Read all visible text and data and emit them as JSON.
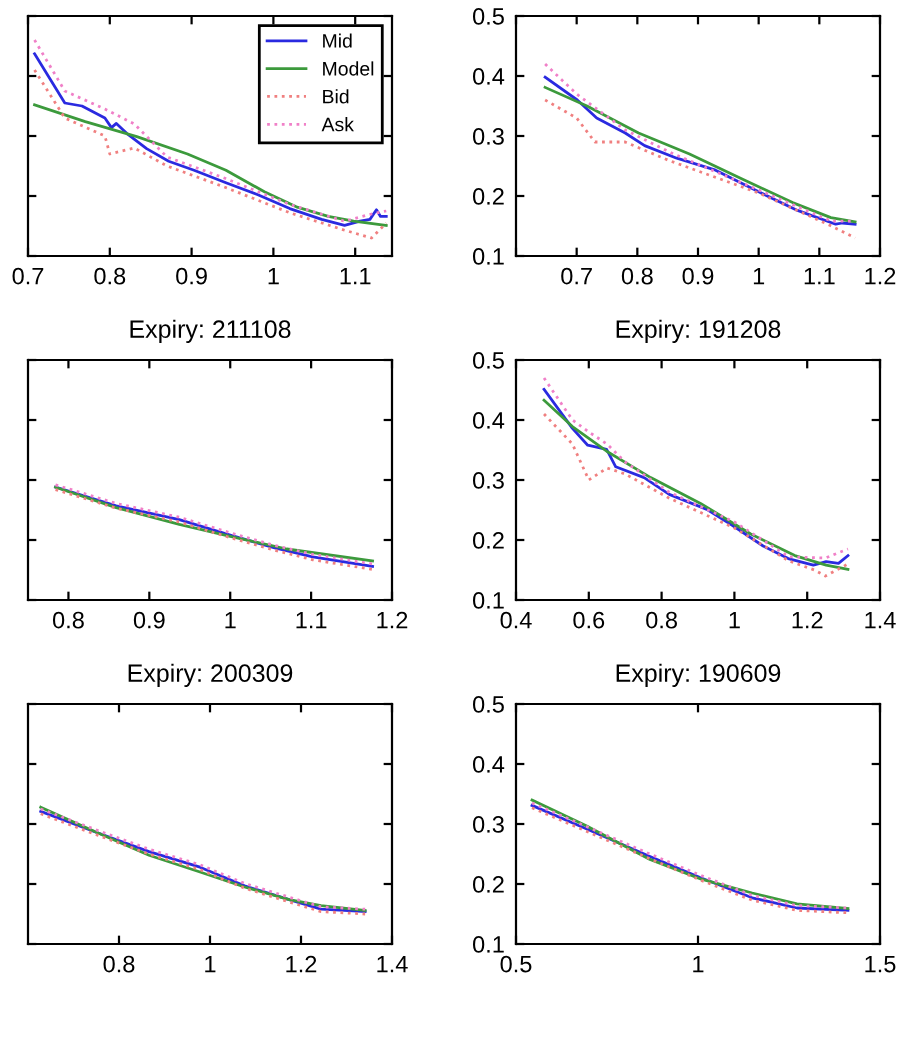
{
  "chart_data": [
    {
      "type": "line",
      "xlim": [
        0.7,
        1.145
      ],
      "xticks": [
        0.7,
        0.8,
        0.9,
        1,
        1.1
      ],
      "ylim": [
        0.1,
        0.5
      ],
      "yticks": [
        {
          "value": 0.1,
          "label": null
        },
        {
          "value": 0.2,
          "label": null
        },
        {
          "value": 0.3,
          "label": null
        },
        {
          "value": 0.4,
          "label": null
        },
        {
          "value": 0.5,
          "label": null
        }
      ],
      "tick_labels": "x",
      "legend": "top right",
      "series": [
        {
          "name": "Mid",
          "color": "#2a2ae0",
          "line_style": "solid",
          "x": [
            0.708,
            0.745,
            0.766,
            0.794,
            0.802,
            0.808,
            0.821,
            0.845,
            0.872,
            0.903,
            0.942,
            0.981,
            1.02,
            1.059,
            1.087,
            1.106,
            1.118,
            1.126,
            1.131,
            1.138
          ],
          "values": [
            0.437,
            0.355,
            0.35,
            0.33,
            0.314,
            0.321,
            0.304,
            0.279,
            0.258,
            0.243,
            0.222,
            0.202,
            0.179,
            0.161,
            0.151,
            0.158,
            0.161,
            0.177,
            0.166,
            0.166
          ]
        },
        {
          "name": "Model",
          "color": "#3c9a3c",
          "line_style": "solid",
          "x": [
            0.708,
            0.77,
            0.833,
            0.895,
            0.942,
            0.989,
            1.028,
            1.067,
            1.098,
            1.138
          ],
          "values": [
            0.352,
            0.324,
            0.299,
            0.27,
            0.243,
            0.207,
            0.182,
            0.166,
            0.158,
            0.151
          ]
        },
        {
          "name": "Bid",
          "color": "#f08080",
          "line_style": "dotted",
          "x": [
            0.708,
            0.745,
            0.794,
            0.8,
            0.83,
            0.87,
            0.94,
            1.02,
            1.087,
            1.12,
            1.138
          ],
          "values": [
            0.41,
            0.33,
            0.3,
            0.27,
            0.28,
            0.25,
            0.215,
            0.172,
            0.143,
            0.13,
            0.155
          ]
        },
        {
          "name": "Ask",
          "color": "#f080c8",
          "line_style": "dotted",
          "x": [
            0.708,
            0.745,
            0.794,
            0.83,
            0.87,
            0.94,
            1.02,
            1.087,
            1.12,
            1.138
          ],
          "values": [
            0.46,
            0.375,
            0.345,
            0.32,
            0.265,
            0.23,
            0.186,
            0.158,
            0.17,
            0.175
          ]
        }
      ]
    },
    {
      "type": "line",
      "xlim": [
        0.6,
        1.2
      ],
      "xticks": [
        {
          "value": 0.6,
          "label": null
        },
        0.7,
        0.8,
        0.9,
        1,
        1.1,
        1.2
      ],
      "ylim": [
        0.1,
        0.5
      ],
      "yticks": [
        0.1,
        0.2,
        0.3,
        0.4,
        0.5
      ],
      "series": [
        {
          "color": "#2a2ae0",
          "line_style": "solid",
          "x": [
            0.648,
            0.701,
            0.733,
            0.78,
            0.812,
            0.865,
            0.929,
            1.0,
            1.064,
            1.127,
            1.138,
            1.159
          ],
          "values": [
            0.398,
            0.36,
            0.33,
            0.305,
            0.284,
            0.263,
            0.243,
            0.207,
            0.176,
            0.153,
            0.155,
            0.153
          ]
        },
        {
          "color": "#3c9a3c",
          "line_style": "solid",
          "x": [
            0.648,
            0.717,
            0.802,
            0.886,
            0.971,
            1.056,
            1.119,
            1.159
          ],
          "values": [
            0.381,
            0.35,
            0.305,
            0.27,
            0.229,
            0.189,
            0.164,
            0.157
          ]
        },
        {
          "color": "#f08080",
          "line_style": "dotted",
          "x": [
            0.648,
            0.7,
            0.73,
            0.78,
            0.85,
            1.0,
            1.12,
            1.159
          ],
          "values": [
            0.36,
            0.33,
            0.29,
            0.29,
            0.26,
            0.205,
            0.15,
            0.13
          ]
        },
        {
          "color": "#f080c8",
          "line_style": "dotted",
          "x": [
            0.648,
            0.7,
            0.78,
            0.86,
            1.0,
            1.12,
            1.159
          ],
          "values": [
            0.42,
            0.37,
            0.31,
            0.27,
            0.21,
            0.158,
            0.158
          ]
        }
      ]
    },
    {
      "type": "line",
      "title": "Expiry: 211108",
      "xlim": [
        0.75,
        1.2
      ],
      "xticks": [
        0.8,
        0.9,
        1,
        1.1,
        1.2
      ],
      "ylim": [
        0.1,
        0.5
      ],
      "yticks": [
        {
          "value": 0.1,
          "label": null
        },
        {
          "value": 0.2,
          "label": null
        },
        {
          "value": 0.3,
          "label": null
        },
        {
          "value": 0.4,
          "label": null
        },
        {
          "value": 0.5,
          "label": null
        }
      ],
      "tick_labels": "x",
      "series": [
        {
          "color": "#2a2ae0",
          "line_style": "solid",
          "x": [
            0.784,
            0.859,
            0.937,
            1.0,
            1.055,
            1.102,
            1.176
          ],
          "values": [
            0.288,
            0.257,
            0.234,
            0.208,
            0.187,
            0.172,
            0.156
          ]
        },
        {
          "color": "#3c9a3c",
          "line_style": "solid",
          "x": [
            0.784,
            0.859,
            0.937,
            1.0,
            1.07,
            1.176
          ],
          "values": [
            0.288,
            0.254,
            0.226,
            0.206,
            0.185,
            0.165
          ]
        },
        {
          "color": "#f08080",
          "line_style": "dotted",
          "x": [
            0.784,
            0.859,
            0.937,
            1.0,
            1.055,
            1.102,
            1.176
          ],
          "values": [
            0.284,
            0.253,
            0.23,
            0.204,
            0.183,
            0.167,
            0.151
          ]
        },
        {
          "color": "#f080c8",
          "line_style": "dotted",
          "x": [
            0.784,
            0.859,
            0.937,
            1.0,
            1.055,
            1.102,
            1.176
          ],
          "values": [
            0.292,
            0.261,
            0.238,
            0.212,
            0.191,
            0.176,
            0.16
          ]
        }
      ]
    },
    {
      "type": "line",
      "title": "Expiry: 191208",
      "xlim": [
        0.4,
        1.4
      ],
      "xticks": [
        0.4,
        0.6,
        0.8,
        1,
        1.2,
        1.4
      ],
      "ylim": [
        0.1,
        0.5
      ],
      "yticks": [
        0.1,
        0.2,
        0.3,
        0.4,
        0.5
      ],
      "series": [
        {
          "color": "#2a2ae0",
          "line_style": "solid",
          "x": [
            0.477,
            0.555,
            0.597,
            0.649,
            0.674,
            0.752,
            0.821,
            0.924,
            0.993,
            1.079,
            1.148,
            1.217,
            1.252,
            1.286,
            1.312
          ],
          "values": [
            0.451,
            0.386,
            0.358,
            0.351,
            0.322,
            0.304,
            0.276,
            0.251,
            0.225,
            0.19,
            0.169,
            0.158,
            0.164,
            0.161,
            0.174
          ]
        },
        {
          "color": "#3c9a3c",
          "line_style": "solid",
          "x": [
            0.477,
            0.555,
            0.649,
            0.77,
            0.907,
            1.045,
            1.166,
            1.252,
            1.312
          ],
          "values": [
            0.433,
            0.389,
            0.348,
            0.304,
            0.261,
            0.21,
            0.174,
            0.158,
            0.151
          ]
        },
        {
          "color": "#f08080",
          "line_style": "dotted",
          "x": [
            0.477,
            0.555,
            0.6,
            0.65,
            0.7,
            0.82,
            1.0,
            1.15,
            1.22,
            1.25,
            1.312
          ],
          "values": [
            0.41,
            0.36,
            0.3,
            0.32,
            0.31,
            0.27,
            0.22,
            0.165,
            0.15,
            0.14,
            0.16
          ]
        },
        {
          "color": "#f080c8",
          "line_style": "dotted",
          "x": [
            0.477,
            0.555,
            0.6,
            0.65,
            0.7,
            0.82,
            1.0,
            1.15,
            1.25,
            1.312
          ],
          "values": [
            0.47,
            0.4,
            0.38,
            0.36,
            0.33,
            0.28,
            0.23,
            0.172,
            0.17,
            0.185
          ]
        }
      ]
    },
    {
      "type": "line",
      "title": "Expiry: 200309",
      "xlim": [
        0.6,
        1.4
      ],
      "xticks": [
        0.8,
        1,
        1.2,
        1.4
      ],
      "ylim": [
        0.1,
        0.5
      ],
      "yticks": [
        {
          "value": 0.1,
          "label": null
        },
        {
          "value": 0.2,
          "label": null
        },
        {
          "value": 0.3,
          "label": null
        },
        {
          "value": 0.4,
          "label": null
        },
        {
          "value": 0.5,
          "label": null
        }
      ],
      "tick_labels": "x",
      "series": [
        {
          "color": "#2a2ae0",
          "line_style": "solid",
          "x": [
            0.628,
            0.754,
            0.866,
            0.978,
            1.076,
            1.174,
            1.244,
            1.341
          ],
          "values": [
            0.321,
            0.285,
            0.254,
            0.228,
            0.197,
            0.174,
            0.158,
            0.154
          ]
        },
        {
          "color": "#3c9a3c",
          "line_style": "solid",
          "x": [
            0.628,
            0.754,
            0.866,
            0.978,
            1.076,
            1.174,
            1.244,
            1.341
          ],
          "values": [
            0.328,
            0.285,
            0.248,
            0.22,
            0.195,
            0.174,
            0.164,
            0.156
          ]
        },
        {
          "color": "#f08080",
          "line_style": "dotted",
          "x": [
            0.628,
            0.754,
            0.866,
            0.978,
            1.076,
            1.174,
            1.244,
            1.341
          ],
          "values": [
            0.317,
            0.281,
            0.25,
            0.224,
            0.193,
            0.17,
            0.154,
            0.15
          ]
        },
        {
          "color": "#f080c8",
          "line_style": "dotted",
          "x": [
            0.628,
            0.754,
            0.866,
            0.978,
            1.076,
            1.174,
            1.244,
            1.341
          ],
          "values": [
            0.325,
            0.289,
            0.258,
            0.232,
            0.201,
            0.178,
            0.162,
            0.158
          ]
        }
      ]
    },
    {
      "type": "line",
      "title": "Expiry: 190609",
      "xlim": [
        0.5,
        1.5
      ],
      "xticks": [
        0.5,
        1,
        1.5
      ],
      "ylim": [
        0.1,
        0.5
      ],
      "yticks": [
        0.1,
        0.2,
        0.3,
        0.4,
        0.5
      ],
      "series": [
        {
          "color": "#2a2ae0",
          "line_style": "solid",
          "x": [
            0.544,
            0.693,
            0.868,
            1.009,
            1.149,
            1.272,
            1.412
          ],
          "values": [
            0.331,
            0.292,
            0.246,
            0.21,
            0.177,
            0.16,
            0.156
          ]
        },
        {
          "color": "#3c9a3c",
          "line_style": "solid",
          "x": [
            0.544,
            0.693,
            0.868,
            1.009,
            1.149,
            1.272,
            1.412
          ],
          "values": [
            0.34,
            0.297,
            0.241,
            0.208,
            0.185,
            0.167,
            0.159
          ]
        },
        {
          "color": "#f08080",
          "line_style": "dotted",
          "x": [
            0.544,
            0.693,
            0.868,
            1.009,
            1.149,
            1.272,
            1.412
          ],
          "values": [
            0.327,
            0.288,
            0.242,
            0.206,
            0.173,
            0.156,
            0.152
          ]
        },
        {
          "color": "#f080c8",
          "line_style": "dotted",
          "x": [
            0.544,
            0.693,
            0.868,
            1.009,
            1.149,
            1.272,
            1.412
          ],
          "values": [
            0.335,
            0.296,
            0.25,
            0.214,
            0.181,
            0.164,
            0.16
          ]
        }
      ]
    }
  ]
}
